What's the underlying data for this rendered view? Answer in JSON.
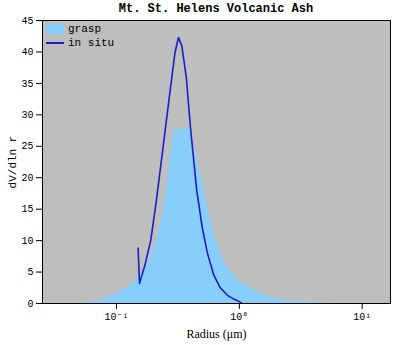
{
  "chart_data": {
    "type": "line",
    "title": "Mt. St. Helens Volcanic Ash",
    "x_label": "Radius (μm)",
    "y_label": "dV/dln r",
    "log": "x",
    "legend": "upper left",
    "xlim": [
      0.025,
      17
    ],
    "ylim": [
      0,
      45
    ],
    "xticks": [
      {
        "value": 0.1,
        "label": "10⁻¹"
      },
      {
        "value": 1,
        "label": "10⁰"
      },
      {
        "value": 10,
        "label": "10¹"
      }
    ],
    "yticks": [
      0,
      5,
      10,
      15,
      20,
      25,
      30,
      35,
      40,
      45
    ],
    "series": [
      {
        "name": "grasp",
        "type": "area",
        "color": "#87cefa",
        "x": [
          0.048,
          0.076,
          0.1,
          0.133,
          0.177,
          0.213,
          0.243,
          0.27,
          0.29,
          0.39,
          0.43,
          0.49,
          0.57,
          0.65,
          0.78,
          1.0,
          1.37,
          1.8,
          2.6,
          4.6,
          6.7
        ],
        "values": [
          0,
          0.5,
          1.5,
          3,
          6,
          10,
          15,
          22,
          27.5,
          28,
          25,
          20,
          14,
          10,
          6,
          3.5,
          2,
          1,
          0.4,
          0.1,
          0
        ]
      },
      {
        "name": "in situ",
        "type": "line",
        "color": "#1c1cc8",
        "x": [
          0.15,
          0.154,
          0.17,
          0.19,
          0.21,
          0.24,
          0.27,
          0.3,
          0.32,
          0.34,
          0.37,
          0.4,
          0.45,
          0.5,
          0.55,
          0.62,
          0.7,
          0.8,
          0.9,
          1.0,
          1.05
        ],
        "values": [
          8.8,
          3.2,
          6,
          10,
          16,
          25,
          33,
          40,
          42.3,
          41,
          36,
          28,
          18,
          12,
          8,
          4.5,
          2.5,
          1.3,
          0.7,
          0.3,
          0
        ]
      }
    ]
  }
}
